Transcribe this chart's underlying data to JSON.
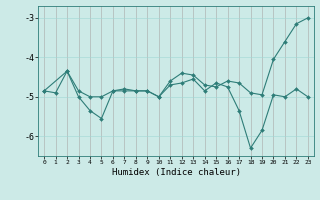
{
  "xlabel": "Humidex (Indice chaleur)",
  "xlim": [
    -0.5,
    23.5
  ],
  "ylim": [
    -6.5,
    -2.7
  ],
  "yticks": [
    -6,
    -5,
    -4,
    -3
  ],
  "xticks": [
    0,
    1,
    2,
    3,
    4,
    5,
    6,
    7,
    8,
    9,
    10,
    11,
    12,
    13,
    14,
    15,
    16,
    17,
    18,
    19,
    20,
    21,
    22,
    23
  ],
  "bg_color": "#cceae7",
  "line_color": "#2e7d78",
  "line1_x": [
    0,
    1,
    2,
    3,
    4,
    5,
    6,
    7,
    8,
    9,
    10,
    11,
    12,
    13,
    14,
    15,
    16,
    17,
    18,
    19,
    20,
    21,
    22,
    23
  ],
  "line1_y": [
    -4.85,
    -4.9,
    -4.35,
    -4.85,
    -5.0,
    -5.0,
    -4.85,
    -4.85,
    -4.85,
    -4.85,
    -5.0,
    -4.6,
    -4.4,
    -4.45,
    -4.7,
    -4.75,
    -4.6,
    -4.65,
    -4.9,
    -4.95,
    -4.05,
    -3.6,
    -3.15,
    -3.0
  ],
  "line2_x": [
    0,
    2,
    3,
    4,
    5,
    6,
    7,
    8,
    9,
    10,
    11,
    12,
    13,
    14,
    15,
    16,
    17,
    18,
    19,
    20,
    21,
    22,
    23
  ],
  "line2_y": [
    -4.85,
    -4.35,
    -5.0,
    -5.35,
    -5.55,
    -4.85,
    -4.8,
    -4.85,
    -4.85,
    -5.0,
    -4.7,
    -4.65,
    -4.55,
    -4.85,
    -4.65,
    -4.75,
    -5.35,
    -6.3,
    -5.85,
    -4.95,
    -5.0,
    -4.8,
    -5.0
  ]
}
